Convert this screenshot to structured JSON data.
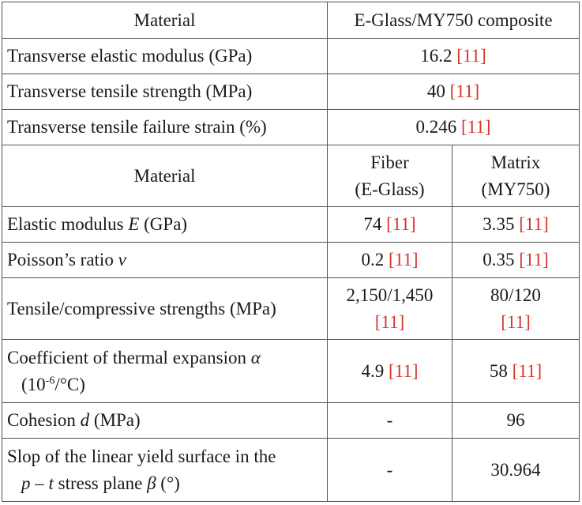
{
  "colors": {
    "ref": "#d9342b",
    "text": "#1a1a1a",
    "border": "#555555"
  },
  "ref_label": "[11]",
  "top": {
    "header_material": "Material",
    "header_composite": "E-Glass/MY750 composite",
    "rows": [
      {
        "label": "Transverse elastic modulus (GPa)",
        "value": "16.2"
      },
      {
        "label": "Transverse tensile strength (MPa)",
        "value": "40"
      },
      {
        "label": "Transverse tensile failure strain (%)",
        "value": "0.246"
      }
    ]
  },
  "bottom": {
    "header_material": "Material",
    "fiber_line1": "Fiber",
    "fiber_line2": "(E-Glass)",
    "matrix_line1": "Matrix",
    "matrix_line2": "(MY750)",
    "elastic": {
      "label_pre": "Elastic modulus ",
      "symbol": "E",
      "label_post": " (GPa)",
      "fiber": "74",
      "matrix": "3.35"
    },
    "poisson": {
      "label_pre": "Poisson’s ratio ",
      "symbol": "ν",
      "fiber": "0.2",
      "matrix": "0.35"
    },
    "strength": {
      "label": "Tensile/compressive strengths (MPa)",
      "fiber": "2,150/1,450",
      "matrix": "80/120"
    },
    "thermal": {
      "label_pre": "Coefficient of thermal expansion ",
      "symbol": "α",
      "unit_pre": "(10",
      "unit_exp": "-6",
      "unit_post": "/°C)",
      "fiber": "4.9",
      "matrix": "58"
    },
    "cohesion": {
      "label_pre": "Cohesion ",
      "symbol": "d",
      "label_post": " (MPa)",
      "fiber": "-",
      "matrix": "96"
    },
    "slope": {
      "line1": "Slop of the linear yield surface in the",
      "sym_p": "p",
      "dash": " – ",
      "sym_t": "t",
      "mid": " stress plane ",
      "symbol": "β",
      "unit": " (°)",
      "fiber": "-",
      "matrix": "30.964"
    }
  }
}
